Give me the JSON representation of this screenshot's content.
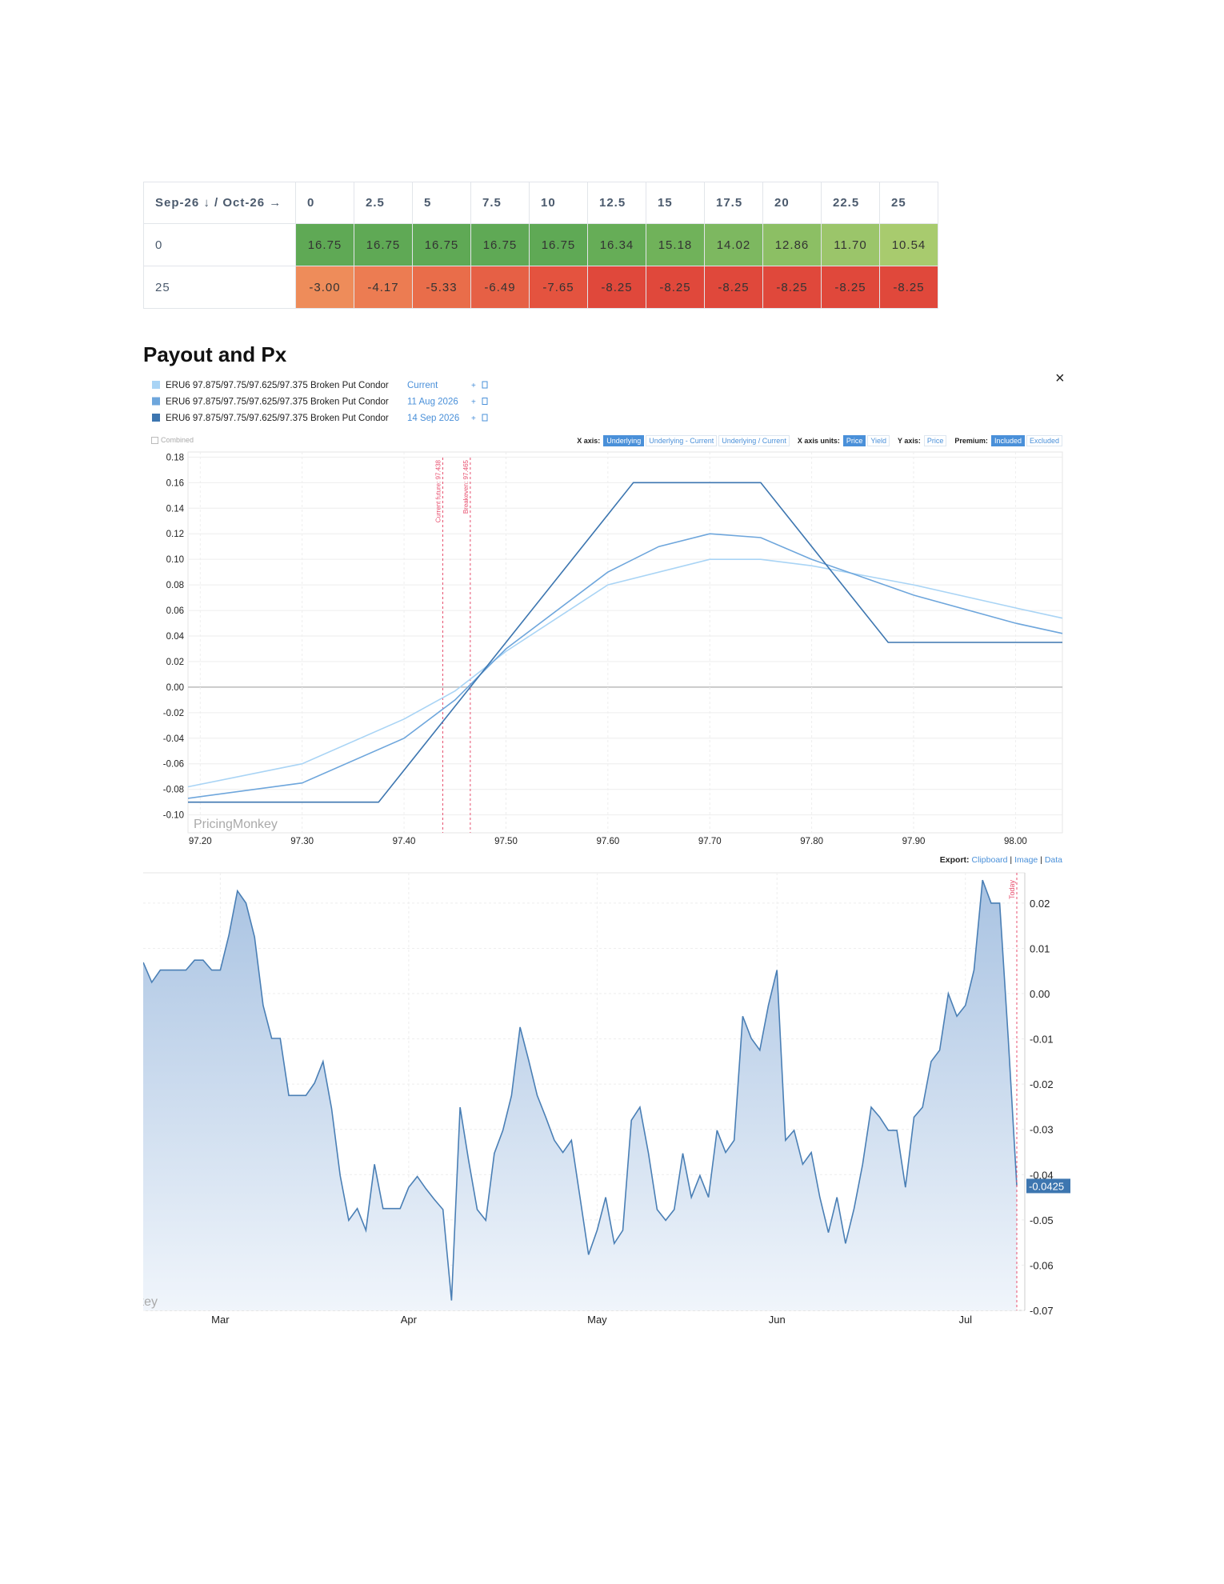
{
  "table": {
    "corner": "Sep-26 ↓ / Oct-26 →",
    "columns": [
      "0",
      "2.5",
      "5",
      "7.5",
      "10",
      "12.5",
      "15",
      "17.5",
      "20",
      "22.5",
      "25"
    ],
    "rows": [
      {
        "label": "0",
        "cells": [
          "16.75",
          "16.75",
          "16.75",
          "16.75",
          "16.75",
          "16.34",
          "15.18",
          "14.02",
          "12.86",
          "11.70",
          "10.54"
        ],
        "colors": [
          "#5fa955",
          "#5fa955",
          "#5fa955",
          "#5fa955",
          "#5fa955",
          "#66ad57",
          "#70b25a",
          "#7db860",
          "#8cbf64",
          "#9bc56a",
          "#a8cb6e"
        ]
      },
      {
        "label": "25",
        "cells": [
          "-3.00",
          "-4.17",
          "-5.33",
          "-6.49",
          "-7.65",
          "-8.25",
          "-8.25",
          "-8.25",
          "-8.25",
          "-8.25",
          "-8.25"
        ],
        "colors": [
          "#ee8c5a",
          "#ec7c52",
          "#e96d4a",
          "#e66045",
          "#e4533f",
          "#e0483b",
          "#e0483b",
          "#e0483b",
          "#e0483b",
          "#e0483b",
          "#e0483b"
        ]
      }
    ]
  },
  "heading": "Payout and Px",
  "close": "×",
  "toolbar": {
    "combined": "Combined",
    "groups": [
      {
        "label": "X axis:",
        "options": [
          "Underlying",
          "Underlying - Current",
          "Underlying / Current"
        ],
        "selected": 0
      },
      {
        "label": "X axis units:",
        "options": [
          "Price",
          "Yield"
        ],
        "selected": 0
      },
      {
        "label": "Y axis:",
        "options": [
          "Price"
        ]
      },
      {
        "label": "Premium:",
        "options": [
          "Included",
          "Excluded"
        ],
        "selected": 0
      }
    ]
  },
  "export": {
    "label": "Export:",
    "options": [
      "Clipboard",
      "Image",
      "Data"
    ]
  },
  "chart_data": [
    {
      "type": "line",
      "watermark": "PricingMonkey",
      "xlim": [
        97.188,
        98.046
      ],
      "ylim": [
        -0.114,
        0.184
      ],
      "grid": true,
      "xticks": [
        {
          "value": 97.2,
          "label": "97.20"
        },
        {
          "value": 97.3,
          "label": "97.30"
        },
        {
          "value": 97.4,
          "label": "97.40"
        },
        {
          "value": 97.5,
          "label": "97.50"
        },
        {
          "value": 97.6,
          "label": "97.60"
        },
        {
          "value": 97.7,
          "label": "97.70"
        },
        {
          "value": 97.8,
          "label": "97.80"
        },
        {
          "value": 97.9,
          "label": "97.90"
        },
        {
          "value": 98,
          "label": "98.00"
        }
      ],
      "yticks": [
        {
          "value": 0.18,
          "label": "0.18"
        },
        {
          "value": 0.16,
          "label": "0.16"
        },
        {
          "value": 0.14,
          "label": "0.14"
        },
        {
          "value": 0.12,
          "label": "0.12"
        },
        {
          "value": 0.1,
          "label": "0.10"
        },
        {
          "value": 0.08,
          "label": "0.08"
        },
        {
          "value": 0.06,
          "label": "0.06"
        },
        {
          "value": 0.04,
          "label": "0.04"
        },
        {
          "value": 0.02,
          "label": "0.02"
        },
        {
          "value": 0,
          "label": "0.00"
        },
        {
          "value": -0.02,
          "label": "-0.02"
        },
        {
          "value": -0.04,
          "label": "-0.04"
        },
        {
          "value": -0.06,
          "label": "-0.06"
        },
        {
          "value": -0.08,
          "label": "-0.08"
        },
        {
          "value": -0.1,
          "label": "-0.10"
        }
      ],
      "annotations": [
        {
          "value": 97.438,
          "label": "Current future: 97.438"
        },
        {
          "value": 97.465,
          "label": "Breakeven: 97.465"
        }
      ],
      "series": [
        {
          "name": "ERU6 97.875/97.75/97.625/97.375 Broken Put Condor",
          "date": "Current",
          "color": "#a9d4f5",
          "x": [
            97.188,
            97.3,
            97.4,
            97.45,
            97.5,
            97.6,
            97.7,
            97.75,
            97.8,
            97.9,
            98.0,
            98.046
          ],
          "values": [
            -0.078,
            -0.06,
            -0.025,
            -0.003,
            0.028,
            0.08,
            0.1,
            0.1,
            0.095,
            0.08,
            0.062,
            0.054
          ]
        },
        {
          "name": "ERU6 97.875/97.75/97.625/97.375 Broken Put Condor",
          "date": "11 Aug 2026",
          "color": "#6ea6dc",
          "x": [
            97.188,
            97.3,
            97.4,
            97.45,
            97.5,
            97.6,
            97.65,
            97.7,
            97.75,
            97.8,
            97.9,
            98.0,
            98.046
          ],
          "values": [
            -0.087,
            -0.075,
            -0.04,
            -0.01,
            0.03,
            0.09,
            0.11,
            0.12,
            0.117,
            0.1,
            0.072,
            0.05,
            0.042
          ]
        },
        {
          "name": "ERU6 97.875/97.75/97.625/97.375 Broken Put Condor",
          "date": "14 Sep 2026",
          "color": "#3d76b0",
          "x": [
            97.188,
            97.375,
            97.625,
            97.75,
            97.875,
            98.046
          ],
          "values": [
            -0.09,
            -0.09,
            0.16,
            0.16,
            0.035,
            0.035
          ]
        }
      ]
    },
    {
      "type": "area",
      "watermark": "PricingMonkey",
      "color": "#4a7fb5",
      "ylim": [
        -0.07,
        0.0267
      ],
      "grid": true,
      "yticks": [
        {
          "value": 0.02,
          "label": "0.02"
        },
        {
          "value": 0.01,
          "label": "0.01"
        },
        {
          "value": 0,
          "label": "0.00"
        },
        {
          "value": -0.01,
          "label": "-0.01"
        },
        {
          "value": -0.02,
          "label": "-0.02"
        },
        {
          "value": -0.03,
          "label": "-0.03"
        },
        {
          "value": -0.04,
          "label": "-0.04"
        },
        {
          "value": -0.05,
          "label": "-0.05"
        },
        {
          "value": -0.06,
          "label": "-0.06"
        },
        {
          "value": -0.07,
          "label": "-0.07"
        }
      ],
      "annotations": [
        {
          "index": 102,
          "label": "Today"
        }
      ],
      "categories": [
        null,
        null,
        null,
        null,
        null,
        null,
        null,
        null,
        null,
        "Mar",
        null,
        null,
        null,
        null,
        null,
        null,
        null,
        null,
        null,
        null,
        null,
        null,
        null,
        null,
        null,
        null,
        null,
        null,
        null,
        null,
        null,
        "Apr",
        null,
        null,
        null,
        null,
        null,
        null,
        null,
        null,
        null,
        null,
        null,
        null,
        null,
        null,
        null,
        null,
        null,
        null,
        null,
        null,
        null,
        "May",
        null,
        null,
        null,
        null,
        null,
        null,
        null,
        null,
        null,
        null,
        null,
        null,
        null,
        null,
        null,
        null,
        null,
        null,
        null,
        null,
        "Jun",
        null,
        null,
        null,
        null,
        null,
        null,
        null,
        null,
        null,
        null,
        null,
        null,
        null,
        null,
        null,
        null,
        null,
        null,
        null,
        null,
        null,
        "Jul",
        null,
        null,
        null,
        null,
        null,
        null
      ],
      "values": [
        0.0069,
        0.0025,
        0.0052,
        0.0052,
        0.0052,
        0.0052,
        0.0074,
        0.0074,
        0.0052,
        0.0052,
        0.0129,
        0.0227,
        0.02,
        0.0125,
        -0.0026,
        -0.0099,
        -0.0099,
        -0.0225,
        -0.0225,
        -0.0225,
        -0.0198,
        -0.015,
        -0.0254,
        -0.0402,
        -0.0501,
        -0.0475,
        -0.0523,
        -0.0377,
        -0.0475,
        -0.0475,
        -0.0475,
        -0.0428,
        -0.0404,
        -0.0431,
        -0.0455,
        -0.0477,
        -0.0678,
        -0.0251,
        -0.0369,
        -0.0477,
        -0.0501,
        -0.0353,
        -0.0302,
        -0.0225,
        -0.0074,
        -0.0147,
        -0.0225,
        -0.0273,
        -0.0324,
        -0.0351,
        -0.0324,
        -0.045,
        -0.0577,
        -0.0523,
        -0.045,
        -0.0552,
        -0.0523,
        -0.028,
        -0.0251,
        -0.0353,
        -0.0477,
        -0.0501,
        -0.0477,
        -0.0353,
        -0.045,
        -0.0402,
        -0.045,
        -0.0302,
        -0.0351,
        -0.0324,
        -0.005,
        -0.0099,
        -0.0125,
        -0.0026,
        0.0052,
        -0.0324,
        -0.0302,
        -0.0377,
        -0.0351,
        -0.045,
        -0.0528,
        -0.045,
        -0.0552,
        -0.0475,
        -0.0377,
        -0.0251,
        -0.0273,
        -0.0302,
        -0.0302,
        -0.0428,
        -0.0273,
        -0.0251,
        -0.015,
        -0.0125,
        0,
        -0.005,
        -0.0026,
        0.0052,
        0.0251,
        0.02,
        0.02,
        -0.0099,
        -0.0425
      ]
    }
  ]
}
